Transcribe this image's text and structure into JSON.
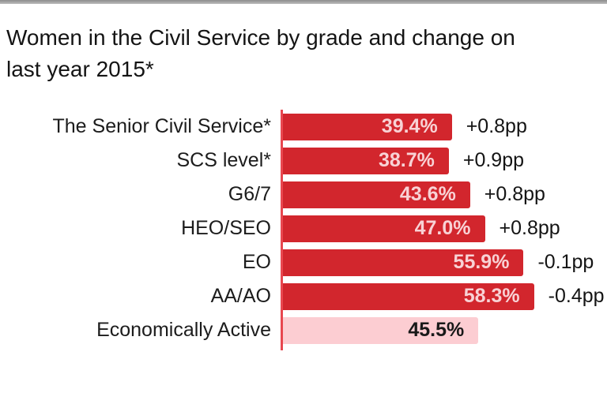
{
  "page": {
    "top_strip_color": "#a6a6a6",
    "background_color": "#ffffff"
  },
  "title": {
    "line1": "Women in the Civil Service by grade and change on",
    "line2": "last year 2015*"
  },
  "chart_data": {
    "type": "bar",
    "orientation": "horizontal",
    "title": "Women in the Civil Service by grade and change on last year 2015*",
    "categories": [
      "The Senior Civil Service*",
      "SCS level*",
      "G6/7",
      "HEO/SEO",
      "EO",
      "AA/AO",
      "Economically Active"
    ],
    "values": [
      39.4,
      38.7,
      43.6,
      47.0,
      55.9,
      58.3,
      45.5
    ],
    "value_labels": [
      "39.4%",
      "38.7%",
      "43.6%",
      "47.0%",
      "55.9%",
      "58.3%",
      "45.5%"
    ],
    "change_labels": [
      "+0.8pp",
      "+0.9pp",
      "+0.8pp",
      "+0.8pp",
      "-0.1pp",
      "-0.4pp",
      ""
    ],
    "bar_styles": [
      "primary",
      "primary",
      "primary",
      "primary",
      "primary",
      "primary",
      "reference"
    ],
    "xlim": [
      0,
      70
    ],
    "legend": "none",
    "grid": false,
    "colors": {
      "bar_primary": "#d2262d",
      "bar_reference": "#fccdd2",
      "value_on_primary": "#f8d2d5",
      "value_on_reference": "#191919",
      "axis_line": "#e8474f",
      "text": "#1c1c1c"
    }
  }
}
